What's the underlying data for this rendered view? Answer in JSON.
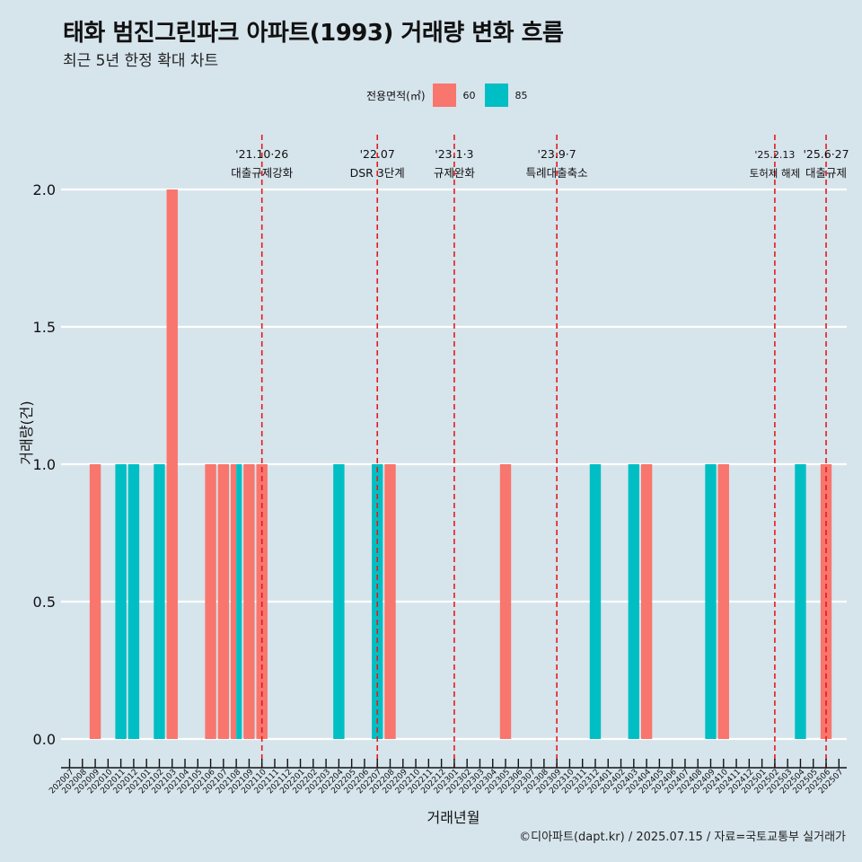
{
  "header": {
    "title": "태화 범진그린파크 아파트(1993) 거래량 변화 흐름",
    "subtitle": "최근 5년 한정 확대 차트"
  },
  "legend": {
    "title": "전용면적(㎡)",
    "items": [
      {
        "label": "60",
        "color": "#F8766D"
      },
      {
        "label": "85",
        "color": "#00BFC4"
      }
    ]
  },
  "caption": "©디아파트(dapt.kr) / 2025.07.15 / 자료=국토교통부 실거래가",
  "chart_data": {
    "type": "bar",
    "xlabel": "거래년월",
    "ylabel": "거래량(건)",
    "ylim": [
      0,
      2
    ],
    "yticks": [
      "0.0",
      "0.5",
      "1.0",
      "1.5",
      "2.0"
    ],
    "grid": true,
    "categories": [
      "202007",
      "202008",
      "202009",
      "202010",
      "202011",
      "202012",
      "202101",
      "202102",
      "202103",
      "202104",
      "202105",
      "202106",
      "202107",
      "202108",
      "202109",
      "202110",
      "202111",
      "202112",
      "202201",
      "202202",
      "202203",
      "202204",
      "202205",
      "202206",
      "202207",
      "202208",
      "202209",
      "202210",
      "202211",
      "202212",
      "202301",
      "202302",
      "202303",
      "202304",
      "202305",
      "202306",
      "202307",
      "202308",
      "202309",
      "202310",
      "202311",
      "202312",
      "202401",
      "202402",
      "202403",
      "202404",
      "202405",
      "202406",
      "202407",
      "202408",
      "202409",
      "202410",
      "202411",
      "202412",
      "202501",
      "202502",
      "202503",
      "202504",
      "202505",
      "202506",
      "202507"
    ],
    "series": [
      {
        "name": "60",
        "color": "#F8766D",
        "values": {
          "202009": 1,
          "202103": 2,
          "202106": 1,
          "202107": 1,
          "202108": 1,
          "202109": 1,
          "202110": 1,
          "202208": 1,
          "202305": 1,
          "202404": 1,
          "202410": 1,
          "202506": 1
        }
      },
      {
        "name": "85",
        "color": "#00BFC4",
        "values": {
          "202011": 1,
          "202012": 1,
          "202102": 1,
          "202108": 1,
          "202204": 1,
          "202207": 1,
          "202312": 1,
          "202403": 1,
          "202409": 1,
          "202504": 1
        }
      }
    ],
    "events": [
      {
        "month": "202110",
        "label1": "'21.10·26",
        "label2": "대출규제강화"
      },
      {
        "month": "202207",
        "label1": "'22.07",
        "label2": "DSR 3단계"
      },
      {
        "month": "202301",
        "label1": "'23.1·3",
        "label2": "규제완화"
      },
      {
        "month": "202309",
        "label1": "'23.9·7",
        "label2": "특례대출축소"
      },
      {
        "month": "202502",
        "label1": "'25.2.13",
        "label2": "토허제 해제"
      },
      {
        "month": "202506",
        "label1": "'25.6·27",
        "label2": "대출규제"
      }
    ]
  }
}
